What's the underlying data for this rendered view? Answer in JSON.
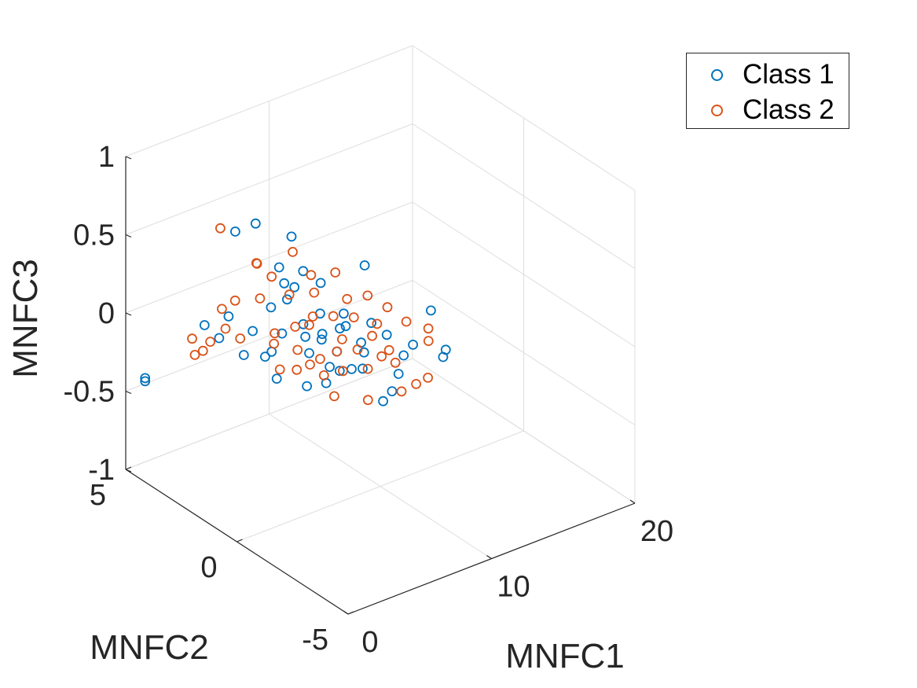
{
  "chart_data": {
    "type": "scatter",
    "view": "3d",
    "xlabel": "MNFC1",
    "ylabel": "MNFC2",
    "zlabel": "MNFC3",
    "xlim": [
      0,
      20
    ],
    "ylim": [
      -5,
      5
    ],
    "zlim": [
      -1,
      1
    ],
    "xticks": [
      "0",
      "10",
      "20"
    ],
    "yticks": [
      "-5",
      "0",
      "5"
    ],
    "zticks": [
      "-1",
      "-0.5",
      "0",
      "0.5",
      "1"
    ],
    "grid": true,
    "legend_position": "top-right",
    "series": [
      {
        "name": "Class 1",
        "color": "#0072BD",
        "marker": "circle-open",
        "points": [
          [
            1.2,
            4.9,
            -0.47
          ],
          [
            1.2,
            4.9,
            -0.45
          ],
          [
            5.8,
            2.9,
            0.56
          ],
          [
            5.0,
            3.3,
            0.5
          ],
          [
            6.6,
            1.8,
            0.55
          ],
          [
            6.2,
            2.1,
            0.34
          ],
          [
            8.6,
            -0.2,
            0.48
          ],
          [
            11.2,
            -1.5,
            0.22
          ],
          [
            11.0,
            -2.3,
            0.05
          ],
          [
            10.5,
            -2.5,
            0.04
          ],
          [
            5.0,
            3.6,
            -0.07
          ],
          [
            4.1,
            4.1,
            -0.14
          ],
          [
            4.5,
            3.7,
            -0.2
          ],
          [
            5.6,
            3.3,
            -0.31
          ],
          [
            6.5,
            2.4,
            -0.41
          ],
          [
            6.9,
            1.3,
            -0.37
          ],
          [
            8.8,
            -1.3,
            -0.23
          ],
          [
            8.8,
            -0.9,
            -0.33
          ],
          [
            6.8,
            1.8,
            0.22
          ],
          [
            7.2,
            0.9,
            0.12
          ],
          [
            7.8,
            0.4,
            0.05
          ],
          [
            8.2,
            -0.3,
            0.01
          ],
          [
            7.5,
            1.0,
            -0.03
          ],
          [
            7.1,
            1.5,
            -0.08
          ],
          [
            7.9,
            0.6,
            -0.12
          ],
          [
            8.4,
            -0.3,
            -0.06
          ],
          [
            6.9,
            1.2,
            -0.15
          ],
          [
            7.4,
            0.6,
            -0.2
          ],
          [
            8.0,
            0.0,
            -0.18
          ],
          [
            6.4,
            2.1,
            -0.09
          ],
          [
            6.1,
            2.4,
            0.06
          ],
          [
            6.6,
            2.0,
            0.13
          ],
          [
            7.6,
            0.1,
            0.18
          ],
          [
            8.9,
            -1.0,
            0.1
          ],
          [
            9.3,
            -1.5,
            0.0
          ],
          [
            9.1,
            -1.4,
            -0.12
          ],
          [
            8.6,
            -0.5,
            0.14
          ],
          [
            6.8,
            1.4,
            0.02
          ],
          [
            7.3,
            0.9,
            -0.05
          ],
          [
            7.9,
            0.2,
            0.08
          ],
          [
            6.3,
            2.5,
            -0.24
          ],
          [
            6.0,
            2.6,
            -0.27
          ],
          [
            7.0,
            0.5,
            -0.28
          ],
          [
            8.1,
            0.6,
            -0.25
          ],
          [
            5.6,
            2.9,
            -0.12
          ],
          [
            7.7,
            1.2,
            0.27
          ],
          [
            7.1,
            1.6,
            0.33
          ],
          [
            6.4,
            2.0,
            0.24
          ],
          [
            9.8,
            -1.6,
            0.06
          ],
          [
            8.3,
            -0.3,
            -0.16
          ]
        ]
      },
      {
        "name": "Class 2",
        "color": "#D95319",
        "marker": "circle-open",
        "points": [
          [
            5.2,
            4.1,
            0.44
          ],
          [
            5.7,
            2.8,
            0.32
          ],
          [
            4.2,
            4.6,
            -0.38
          ],
          [
            4.3,
            4.3,
            -0.33
          ],
          [
            3.7,
            4.4,
            -0.24
          ],
          [
            4.5,
            4.1,
            -0.26
          ],
          [
            5.1,
            3.8,
            -0.17
          ],
          [
            5.5,
            3.4,
            -0.21
          ],
          [
            5.9,
            2.9,
            0.3
          ],
          [
            6.3,
            2.5,
            0.24
          ],
          [
            7.3,
            2.2,
            0.39
          ],
          [
            8.1,
            0.8,
            0.36
          ],
          [
            9.1,
            -0.9,
            0.26
          ],
          [
            9.8,
            -1.3,
            0.18
          ],
          [
            10.4,
            -1.9,
            0.17
          ],
          [
            10.1,
            -2.1,
            0.12
          ],
          [
            9.6,
            -2.4,
            -0.07
          ],
          [
            9.4,
            -2.0,
            -0.14
          ],
          [
            9.0,
            -1.6,
            -0.21
          ],
          [
            7.9,
            -0.8,
            -0.3
          ],
          [
            7.1,
            0.2,
            -0.34
          ],
          [
            6.5,
            1.5,
            -0.27
          ],
          [
            6.2,
            2.3,
            -0.1
          ],
          [
            6.7,
            1.7,
            -0.02
          ],
          [
            7.0,
            1.1,
            0.09
          ],
          [
            7.5,
            0.5,
            0.13
          ],
          [
            8.0,
            -0.1,
            0.16
          ],
          [
            8.5,
            -0.6,
            0.07
          ],
          [
            8.1,
            -0.2,
            -0.04
          ],
          [
            7.6,
            0.4,
            -0.09
          ],
          [
            7.2,
            0.9,
            -0.17
          ],
          [
            6.8,
            1.1,
            -0.21
          ],
          [
            6.0,
            2.2,
            -0.15
          ],
          [
            5.8,
            2.7,
            0.1
          ],
          [
            6.6,
            1.9,
            0.17
          ],
          [
            7.4,
            1.3,
            0.21
          ],
          [
            8.3,
            0.4,
            0.22
          ],
          [
            9.0,
            -0.5,
            0.12
          ],
          [
            8.7,
            -0.9,
            -0.04
          ],
          [
            8.2,
            -0.6,
            -0.13
          ],
          [
            7.7,
            0.2,
            -0.2
          ],
          [
            7.0,
            0.6,
            -0.24
          ],
          [
            6.4,
            1.4,
            -0.13
          ],
          [
            6.9,
            1.2,
            0.03
          ],
          [
            7.8,
            0.3,
            -0.01
          ],
          [
            8.6,
            -1.3,
            0.04
          ],
          [
            5.3,
            3.5,
            0.03
          ],
          [
            5.0,
            3.9,
            -0.05
          ],
          [
            7.5,
            1.5,
            0.3
          ],
          [
            8.8,
            -0.2,
            0.28
          ],
          [
            6.1,
            2.0,
            -0.3
          ],
          [
            9.5,
            -1.0,
            -0.1
          ]
        ]
      }
    ]
  }
}
